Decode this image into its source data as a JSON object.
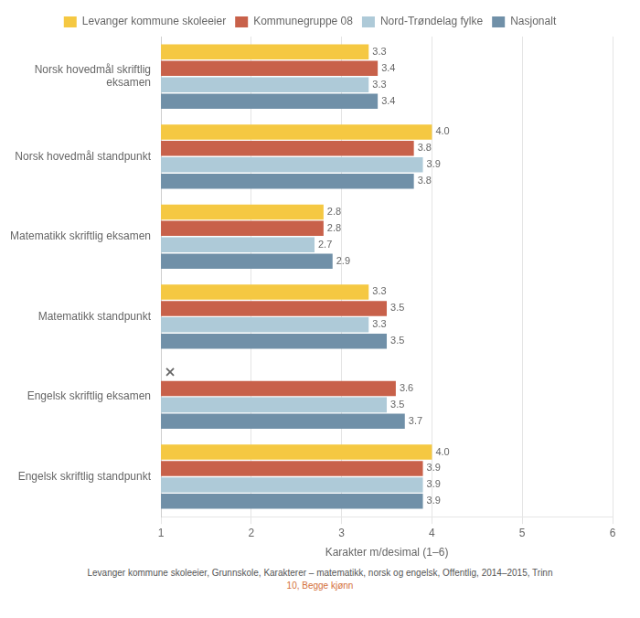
{
  "chart_data": {
    "type": "bar",
    "orientation": "horizontal",
    "categories": [
      "Norsk hovedmål skriftlig\neksamen",
      "Norsk hovedmål standpunkt",
      "Matematikk skriftlig eksamen",
      "Matematikk standpunkt",
      "Engelsk skriftlig eksamen",
      "Engelsk skriftlig standpunkt"
    ],
    "series": [
      {
        "name": "Levanger kommune skoleeier",
        "color": "#F5C842",
        "values": [
          3.3,
          4.0,
          2.8,
          3.3,
          null,
          4.0
        ],
        "value_labels": [
          "3.3",
          "4.0",
          "2.8",
          "3.3",
          null,
          "4.0"
        ]
      },
      {
        "name": "Kommunegruppe 08",
        "color": "#C8614A",
        "values": [
          3.4,
          3.8,
          2.8,
          3.5,
          3.6,
          3.9
        ],
        "value_labels": [
          "3.4",
          "3.8",
          "2.8",
          "3.5",
          "3.6",
          "3.9"
        ]
      },
      {
        "name": "Nord-Trøndelag fylke",
        "color": "#AECAD8",
        "values": [
          3.3,
          3.9,
          2.7,
          3.3,
          3.5,
          3.9
        ],
        "value_labels": [
          "3.3",
          "3.9",
          "2.7",
          "3.3",
          "3.5",
          "3.9"
        ]
      },
      {
        "name": "Nasjonalt",
        "color": "#7090A8",
        "values": [
          3.4,
          3.8,
          2.9,
          3.5,
          3.7,
          3.9
        ],
        "value_labels": [
          "3.4",
          "3.8",
          "2.9",
          "3.5",
          "3.7",
          "3.9"
        ]
      }
    ],
    "xlabel": "Karakter m/desimal (1–6)",
    "xlim": [
      1,
      6
    ],
    "xticks": [
      1,
      2,
      3,
      4,
      5,
      6
    ],
    "grid": true,
    "legend": "top",
    "data_labels": true,
    "annotations": [
      {
        "text": "Levanger kommune skoleeier, Grunnskole, Karakterer – matematikk, norsk og engelsk, Offentlig, 2014–2015, Trinn",
        "color": "#555555"
      },
      {
        "text": "10, Begge kjønn",
        "color": "#D4703A"
      }
    ]
  }
}
